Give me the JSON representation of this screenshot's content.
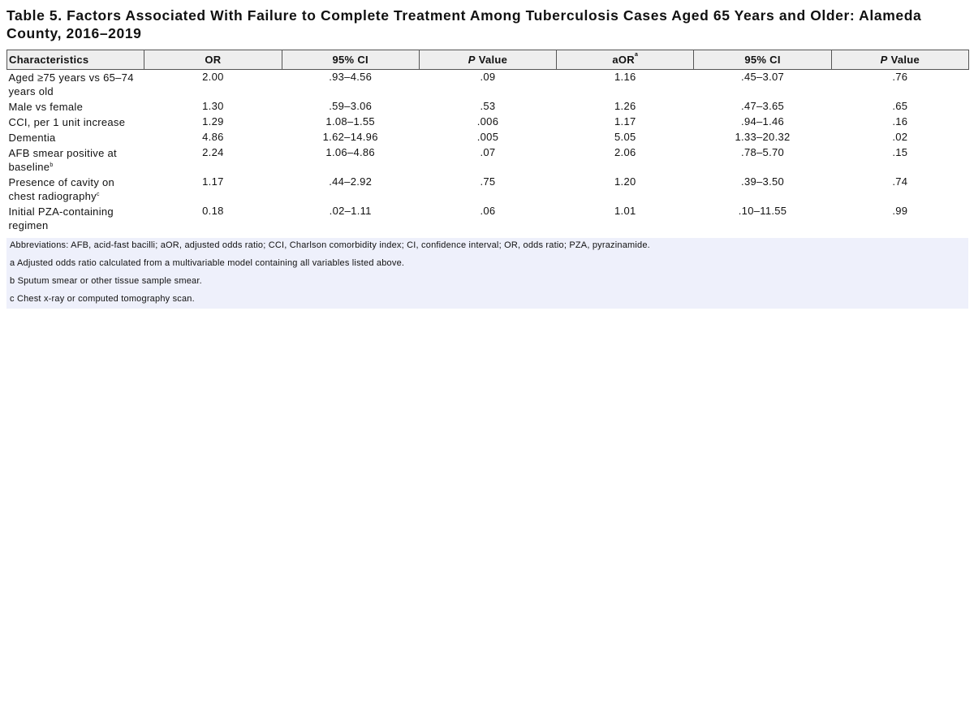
{
  "title": "Table 5. Factors Associated With Failure to Complete Treatment Among Tuberculosis Cases Aged 65 Years and Older: Alameda County, 2016–2019",
  "table": {
    "columns": [
      {
        "label": "Characteristics"
      },
      {
        "label": "OR"
      },
      {
        "label": "95% CI"
      },
      {
        "italic": "P",
        "label": "Value"
      },
      {
        "label": "aOR",
        "sup": "a"
      },
      {
        "label": "95% CI"
      },
      {
        "italic": "P",
        "label": "Value"
      }
    ],
    "rows": [
      {
        "label": "Aged ≥75 years vs 65–74 years old",
        "cells": [
          "2.00",
          ".93–4.56",
          ".09",
          "1.16",
          ".45–3.07",
          ".76"
        ]
      },
      {
        "label": "Male vs female",
        "cells": [
          "1.30",
          ".59–3.06",
          ".53",
          "1.26",
          ".47–3.65",
          ".65"
        ]
      },
      {
        "label": "CCI, per 1 unit increase",
        "cells": [
          "1.29",
          "1.08–1.55",
          ".006",
          "1.17",
          ".94–1.46",
          ".16"
        ]
      },
      {
        "label": "Dementia",
        "cells": [
          "4.86",
          "1.62–14.96",
          ".005",
          "5.05",
          "1.33–20.32",
          ".02"
        ]
      },
      {
        "label": "AFB smear positive at baseline",
        "sup": "b",
        "cells": [
          "2.24",
          "1.06–4.86",
          ".07",
          "2.06",
          ".78–5.70",
          ".15"
        ]
      },
      {
        "label": "Presence of cavity on chest radiography",
        "sup": "c",
        "cells": [
          "1.17",
          ".44–2.92",
          ".75",
          "1.20",
          ".39–3.50",
          ".74"
        ]
      },
      {
        "label": "Initial PZA-containing regimen",
        "cells": [
          "0.18",
          ".02–1.11",
          ".06",
          "1.01",
          ".10–11.55",
          ".99"
        ]
      }
    ]
  },
  "footnotes": [
    "Abbreviations: AFB, acid-fast bacilli; aOR, adjusted odds ratio; CCI, Charlson comorbidity index; CI, confidence interval; OR, odds ratio; PZA, pyrazinamide.",
    "a Adjusted odds ratio calculated from a multivariable model containing all variables listed above.",
    "b Sputum smear or other tissue sample smear.",
    "c Chest x-ray or computed tomography scan."
  ]
}
